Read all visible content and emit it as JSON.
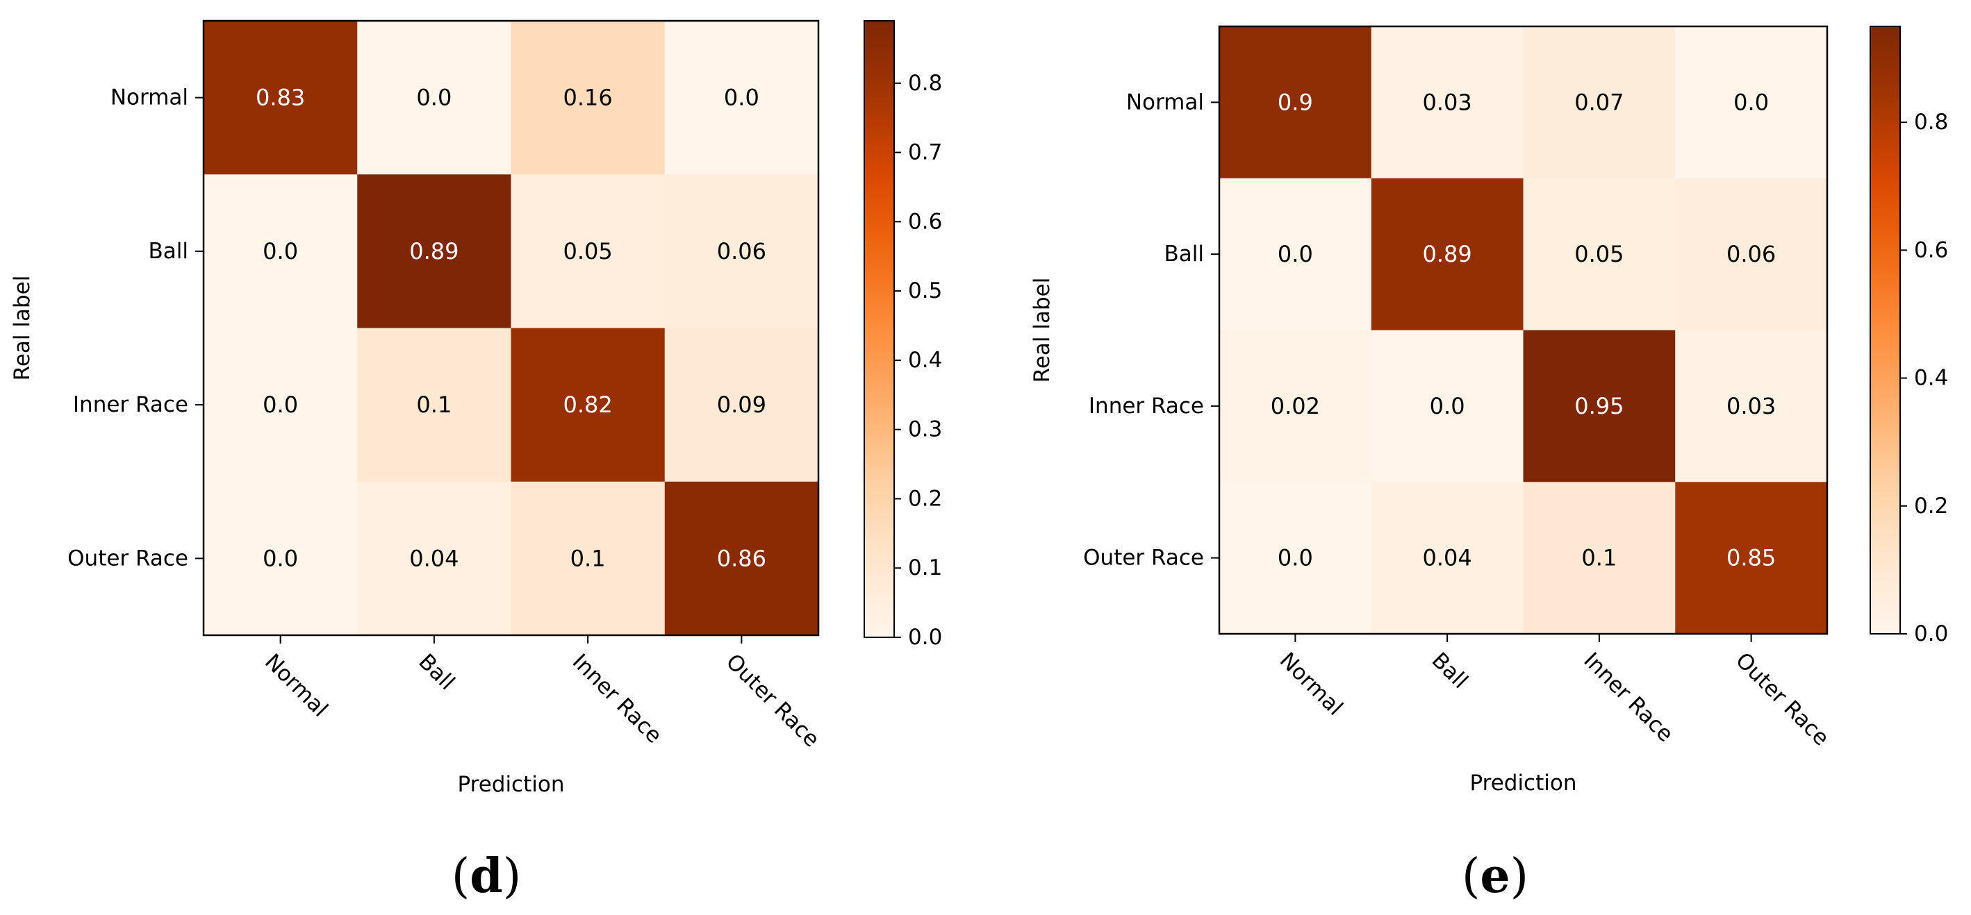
{
  "chart_data": [
    {
      "type": "heatmap",
      "caption": "(d)",
      "xlabel": "Prediction",
      "ylabel": "Real label",
      "x_categories": [
        "Normal",
        "Ball",
        "Inner Race",
        "Outer Race"
      ],
      "y_categories": [
        "Normal",
        "Ball",
        "Inner Race",
        "Outer Race"
      ],
      "matrix": [
        [
          0.83,
          0.0,
          0.16,
          0.0
        ],
        [
          0.0,
          0.89,
          0.05,
          0.06
        ],
        [
          0.0,
          0.1,
          0.82,
          0.09
        ],
        [
          0.0,
          0.04,
          0.1,
          0.86
        ]
      ],
      "cell_labels": [
        [
          "0.83",
          "0.0",
          "0.16",
          "0.0"
        ],
        [
          "0.0",
          "0.89",
          "0.05",
          "0.06"
        ],
        [
          "0.0",
          "0.1",
          "0.82",
          "0.09"
        ],
        [
          "0.0",
          "0.04",
          "0.1",
          "0.86"
        ]
      ],
      "colorbar": {
        "colormap": "Oranges",
        "vmin": 0.0,
        "vmax": 0.89,
        "ticks": [
          0.0,
          0.1,
          0.2,
          0.3,
          0.4,
          0.5,
          0.6,
          0.7,
          0.8
        ],
        "tick_labels": [
          "0.0",
          "0.1",
          "0.2",
          "0.3",
          "0.4",
          "0.5",
          "0.6",
          "0.7",
          "0.8"
        ]
      }
    },
    {
      "type": "heatmap",
      "caption": "(e)",
      "xlabel": "Prediction",
      "ylabel": "Real label",
      "x_categories": [
        "Normal",
        "Ball",
        "Inner Race",
        "Outer Race"
      ],
      "y_categories": [
        "Normal",
        "Ball",
        "Inner Race",
        "Outer Race"
      ],
      "matrix": [
        [
          0.9,
          0.03,
          0.07,
          0.0
        ],
        [
          0.0,
          0.89,
          0.05,
          0.06
        ],
        [
          0.02,
          0.0,
          0.95,
          0.03
        ],
        [
          0.0,
          0.04,
          0.1,
          0.85
        ]
      ],
      "cell_labels": [
        [
          "0.9",
          "0.03",
          "0.07",
          "0.0"
        ],
        [
          "0.0",
          "0.89",
          "0.05",
          "0.06"
        ],
        [
          "0.02",
          "0.0",
          "0.95",
          "0.03"
        ],
        [
          "0.0",
          "0.04",
          "0.1",
          "0.85"
        ]
      ],
      "colorbar": {
        "colormap": "Oranges",
        "vmin": 0.0,
        "vmax": 0.95,
        "ticks": [
          0.0,
          0.2,
          0.4,
          0.6,
          0.8
        ],
        "tick_labels": [
          "0.0",
          "0.2",
          "0.4",
          "0.6",
          "0.8"
        ]
      }
    }
  ]
}
